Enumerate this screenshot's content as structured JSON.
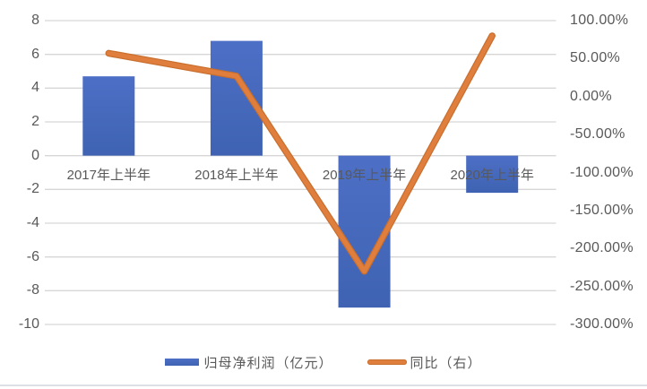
{
  "chart_data": {
    "type": "combo",
    "categories": [
      "2017年上半年",
      "2018年上半年",
      "2019年上半年",
      "2020年上半年"
    ],
    "series": [
      {
        "name": "归母净利润（亿元）",
        "type": "bar",
        "axis": "left",
        "values": [
          4.7,
          6.8,
          -9.0,
          -2.2
        ]
      },
      {
        "name": "同比（右）",
        "type": "line",
        "axis": "right",
        "values": [
          57,
          27,
          -230,
          80
        ]
      }
    ],
    "left_axis": {
      "min": -10,
      "max": 8,
      "ticks": [
        "8",
        "6",
        "4",
        "2",
        "0",
        "-2",
        "-4",
        "-6",
        "-8",
        "-10"
      ]
    },
    "right_axis": {
      "min": -300,
      "max": 100,
      "ticks": [
        "100.00%",
        "50.00%",
        "0.00%",
        "-50.00%",
        "-100.00%",
        "-150.00%",
        "-200.00%",
        "-250.00%",
        "-300.00%"
      ]
    },
    "grid": true,
    "legend_position": "bottom",
    "title": ""
  },
  "legend": {
    "items": [
      {
        "label": "归母净利润（亿元）",
        "swatch": "bar"
      },
      {
        "label": "同比（右）",
        "swatch": "line"
      }
    ]
  },
  "colors": {
    "bar_top": "#4D6FC6",
    "bar_bottom": "#3F63B2",
    "bar": "#4472C4",
    "line": "#E07F3D",
    "line_edge": "#C96F2E",
    "grid": "#D6D6D6",
    "text": "#595959",
    "divider": "#DCE0E5",
    "background": "#FFFFFF"
  }
}
